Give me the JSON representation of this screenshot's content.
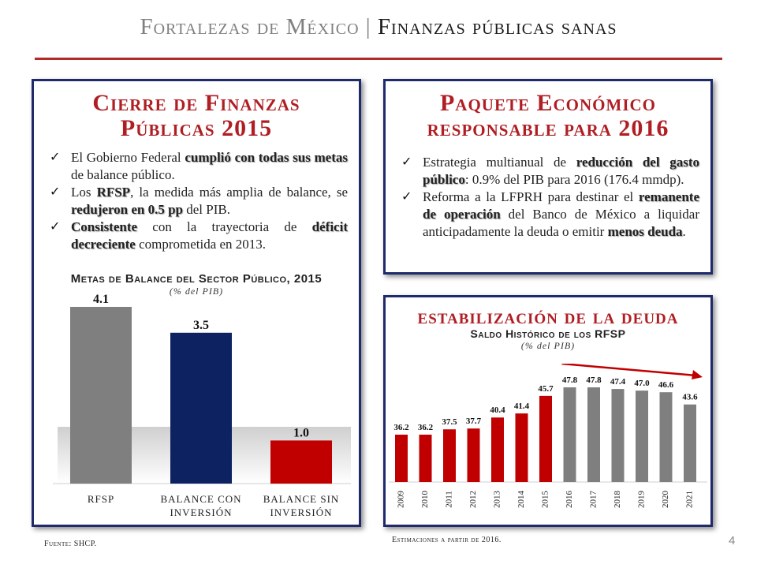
{
  "title": {
    "part1": "Fortalezas de México",
    "separator": "|",
    "part2": "Finanzas públicas sanas"
  },
  "panel_left": {
    "heading_line1": "Cierre de Finanzas",
    "heading_line2": "Públicas 2015",
    "bullets": [
      {
        "pre": "El Gobierno Federal ",
        "bold1": "cumplió con todas sus metas",
        "mid": " de balance público.",
        "bold2": "",
        "post": ""
      },
      {
        "pre": "Los ",
        "bold1": "RFSP",
        "mid": ", la medida más amplia de balance, se ",
        "bold2": "redujeron en 0.5 pp",
        "post": " del PIB."
      },
      {
        "pre": "",
        "bold1": "Consistente",
        "mid": " con la trayectoria de ",
        "bold2": "déficit decreciente",
        "post": " comprometida en 2013."
      }
    ],
    "chart_title": "Metas de Balance del Sector Público, 2015",
    "chart_subtitle": "(% del PIB)"
  },
  "panel_paquete": {
    "heading_line1": "Paquete Económico",
    "heading_line2": "responsable para 2016",
    "bullets": [
      {
        "pre": "Estrategia multianual de ",
        "bold1": "reducción del gasto público",
        "mid": ": 0.9% del PIB para 2016 (176.4 mmdp).",
        "bold2": "",
        "post": ""
      },
      {
        "pre": "Reforma a la LFPRH para destinar el ",
        "bold1": "remanente de operación",
        "mid": " del Banco de México a liquidar anticipadamente la deuda o emitir ",
        "bold2": "menos deuda",
        "post": "."
      }
    ]
  },
  "panel_deuda": {
    "heading": "estabilización de la deuda",
    "chart_title": "Saldo Histórico de los RFSP",
    "chart_subtitle": "(% del PIB)"
  },
  "chart_data": [
    {
      "type": "bar",
      "title": "Metas de Balance del Sector Público, 2015",
      "subtitle": "(% del PIB)",
      "categories": [
        "RFSP",
        "Balance con inversión",
        "Balance sin inversión"
      ],
      "category_lines": [
        [
          "RFSP"
        ],
        [
          "Balance con",
          "inversión"
        ],
        [
          "Balance sin",
          "inversión"
        ]
      ],
      "values": [
        4.1,
        3.5,
        1.0
      ],
      "labels": [
        "4.1",
        "3.5",
        "1.0"
      ],
      "colors": [
        "#7f7f7f",
        "#0d2261",
        "#c00000"
      ],
      "ylim": [
        0,
        4.1
      ]
    },
    {
      "type": "bar",
      "title": "Saldo Histórico de los RFSP",
      "subtitle": "(% del PIB)",
      "categories": [
        "2009",
        "2010",
        "2011",
        "2012",
        "2013",
        "2014",
        "2015",
        "2016",
        "2017",
        "2018",
        "2019",
        "2020",
        "2021"
      ],
      "values": [
        36.2,
        36.2,
        37.5,
        37.7,
        40.4,
        41.4,
        45.7,
        47.8,
        47.8,
        47.4,
        47.0,
        46.6,
        43.6
      ],
      "labels": [
        "36.2",
        "36.2",
        "37.5",
        "37.7",
        "40.4",
        "41.4",
        "45.7",
        "47.8",
        "47.8",
        "47.4",
        "47.0",
        "46.6",
        "43.6"
      ],
      "colors": {
        "historical": "#c00000",
        "estimated": "#7f7f7f"
      },
      "estimated_from": "2016",
      "ylim": [
        30,
        47.8
      ],
      "trend_arrow": true
    }
  ],
  "footer": {
    "source": "Fuente: SHCP.",
    "note": "Estimaciones a partir de 2016.",
    "page": "4"
  }
}
